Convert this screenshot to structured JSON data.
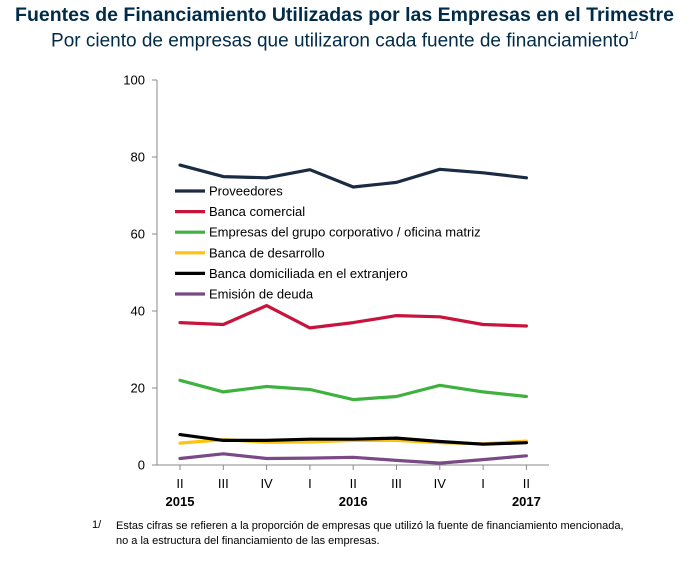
{
  "chart_data": {
    "type": "line",
    "title": "Fuentes de Financiamiento Utilizadas por las Empresas en el Trimestre",
    "subtitle": "Por ciento de empresas que utilizaron cada fuente de financiamiento",
    "subtitle_note": "1/",
    "quarters": [
      "II",
      "III",
      "IV",
      "I",
      "II",
      "III",
      "IV",
      "I",
      "II"
    ],
    "years": [
      {
        "label": "2015",
        "index": 0
      },
      {
        "label": "2016",
        "index": 4
      },
      {
        "label": "2017",
        "index": 8
      }
    ],
    "y_ticks": [
      "0",
      "20",
      "40",
      "60",
      "80",
      "100"
    ],
    "ylim": [
      0,
      100
    ],
    "legend_position": "upper-left",
    "series": [
      {
        "name": "Proveedores",
        "color": "#1c2b44",
        "values": [
          77.9,
          74.9,
          74.6,
          76.7,
          72.2,
          73.4,
          76.8,
          75.9,
          74.6
        ]
      },
      {
        "name": "Banca comercial",
        "color": "#c8143c",
        "values": [
          37.0,
          36.5,
          41.4,
          35.6,
          37.0,
          38.8,
          38.5,
          36.5,
          36.1
        ]
      },
      {
        "name": "Empresas del grupo corporativo / oficina matriz",
        "color": "#3fb13f",
        "values": [
          22.0,
          19.0,
          20.4,
          19.6,
          17.0,
          17.8,
          20.7,
          19.0,
          17.8
        ]
      },
      {
        "name": "Banca de desarrollo",
        "color": "#ffc20e",
        "values": [
          5.7,
          6.6,
          5.9,
          6.0,
          6.4,
          6.4,
          5.8,
          5.5,
          6.2
        ]
      },
      {
        "name": "Banca domiciliada en el extranjero",
        "color": "#000000",
        "values": [
          7.9,
          6.4,
          6.4,
          6.7,
          6.7,
          7.0,
          6.1,
          5.4,
          5.8
        ]
      },
      {
        "name": "Emisión de deuda",
        "color": "#7a4a86",
        "values": [
          1.7,
          2.9,
          1.7,
          1.8,
          2.0,
          1.2,
          0.5,
          1.4,
          2.4
        ]
      }
    ]
  },
  "footnote": {
    "mark": "1/",
    "text": "Estas cifras se refieren a la proporción de empresas que utilizó la fuente de financiamiento mencionada, no a la estructura del financiamiento de las empresas."
  }
}
